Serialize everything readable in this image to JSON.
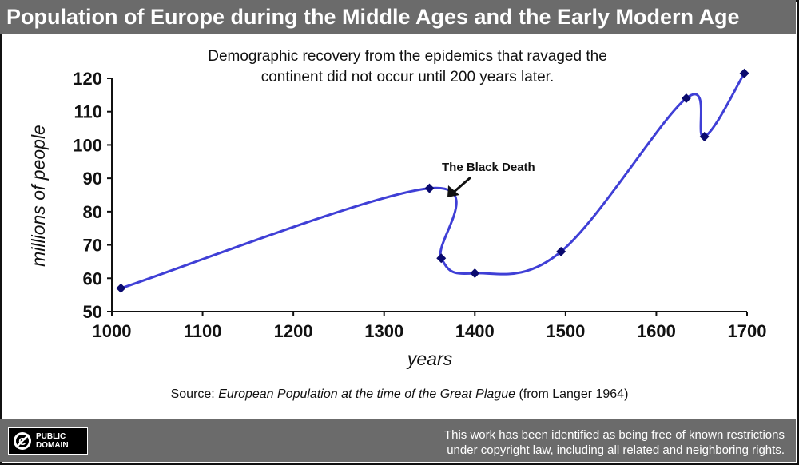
{
  "title": "Population of Europe during the Middle Ages and the Early Modern Age",
  "subtitle_line1": "Demographic recovery from the epidemics that ravaged the",
  "subtitle_line2": "continent did not occur until 200 years later.",
  "source": {
    "prefix": "Source: ",
    "work": "European Population at the time of the Great Plague",
    "suffix": " (from Langer 1964)"
  },
  "footer": {
    "badge_line1": "PUBLIC",
    "badge_line2": "DOMAIN",
    "notice_line1": "This work has been identified as being free of known restrictions",
    "notice_line2": "under copyright law, including all related and neighboring rights."
  },
  "colors": {
    "line": "#3f3fd6",
    "marker": "#0a0a6e",
    "bar": "#6b6b6b"
  },
  "chart_data": {
    "type": "line",
    "xlabel": "years",
    "ylabel": "millions of people",
    "xlim": [
      1000,
      1700
    ],
    "ylim": [
      50,
      120
    ],
    "x_ticks": [
      1000,
      1100,
      1200,
      1300,
      1400,
      1500,
      1600,
      1700
    ],
    "y_ticks": [
      50,
      60,
      70,
      80,
      90,
      100,
      110,
      120
    ],
    "grid": false,
    "series": [
      {
        "x": [
          1010,
          1350,
          1363,
          1400,
          1495,
          1633,
          1653,
          1697
        ],
        "y": [
          57,
          87,
          66,
          61.5,
          68,
          114,
          102.5,
          121.5
        ]
      }
    ],
    "annotation": {
      "text": "The Black Death",
      "x": 1350,
      "y": 87
    }
  }
}
